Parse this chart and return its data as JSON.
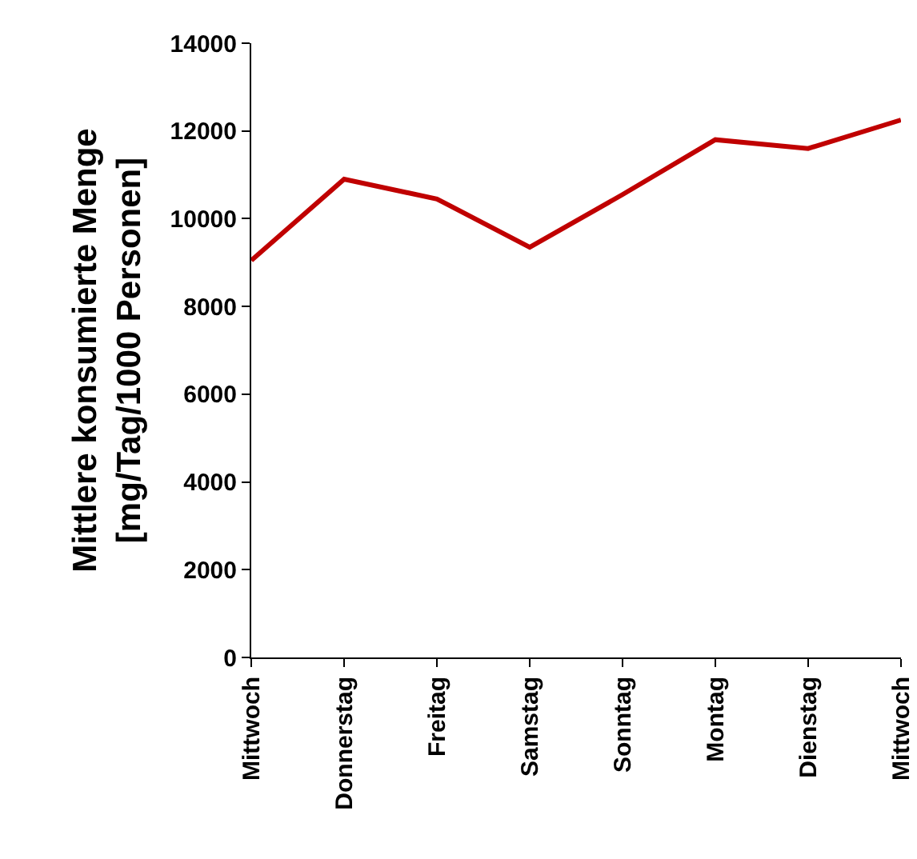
{
  "chart_data": {
    "type": "line",
    "ylabel": "Mittlere konsumierte Menge\n[mg/Tag/1000 Personen]",
    "categories": [
      "Mittwoch",
      "Donnerstag",
      "Freitag",
      "Samstag",
      "Sonntag",
      "Montag",
      "Dienstag",
      "Mittwoch"
    ],
    "series": [
      {
        "color": "#c00000",
        "values": [
          9050,
          10900,
          10450,
          9350,
          10550,
          11800,
          11600,
          12250
        ]
      }
    ],
    "ylim": [
      0,
      14000
    ],
    "yticks": [
      0,
      2000,
      4000,
      6000,
      8000,
      10000,
      12000,
      14000
    ],
    "grid": false,
    "marker": "none",
    "line_style": "solid"
  }
}
